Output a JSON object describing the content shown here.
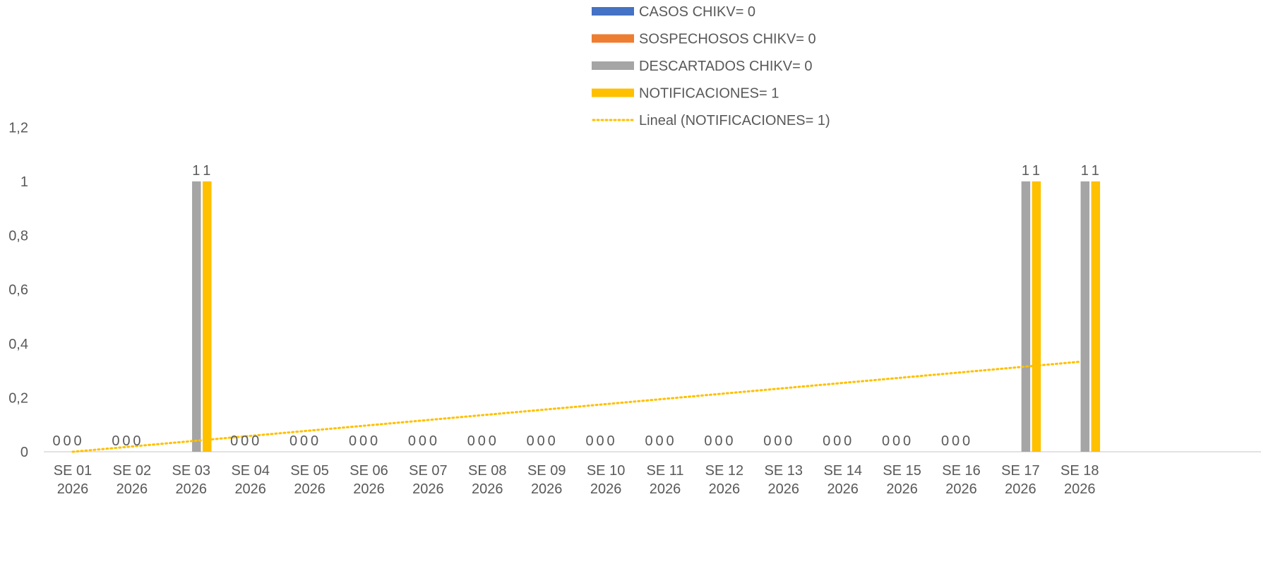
{
  "chart_data": {
    "type": "bar",
    "title": "",
    "xlabel": "",
    "ylabel": "",
    "ylim": [
      0,
      1.2
    ],
    "yticks": [
      "0",
      "0,2",
      "0,4",
      "0,6",
      "0,8",
      "1",
      "1,2"
    ],
    "grid": false,
    "legend_position": "top-right",
    "categories": [
      [
        "SE 01",
        "2026"
      ],
      [
        "SE 02",
        "2026"
      ],
      [
        "SE 03",
        "2026"
      ],
      [
        "SE 04",
        "2026"
      ],
      [
        "SE 05",
        "2026"
      ],
      [
        "SE 06",
        "2026"
      ],
      [
        "SE 07",
        "2026"
      ],
      [
        "SE 08",
        "2026"
      ],
      [
        "SE 09",
        "2026"
      ],
      [
        "SE 10",
        "2026"
      ],
      [
        "SE 11",
        "2026"
      ],
      [
        "SE 12",
        "2026"
      ],
      [
        "SE 13",
        "2026"
      ],
      [
        "SE 14",
        "2026"
      ],
      [
        "SE 15",
        "2026"
      ],
      [
        "SE 16",
        "2026"
      ],
      [
        "SE 17",
        "2026"
      ],
      [
        "SE 18",
        "2026"
      ]
    ],
    "series": [
      {
        "name": "CASOS CHIKV= 0",
        "color": "#4472C4",
        "values": [
          0,
          0,
          0,
          0,
          0,
          0,
          0,
          0,
          0,
          0,
          0,
          0,
          0,
          0,
          0,
          0,
          0,
          0
        ],
        "labels": [
          "0",
          "0",
          "",
          "0",
          "0",
          "0",
          "0",
          "0",
          "0",
          "0",
          "0",
          "0",
          "0",
          "0",
          "0",
          "0",
          "",
          ""
        ]
      },
      {
        "name": "SOSPECHOSOS CHIKV= 0",
        "color": "#ED7D31",
        "values": [
          0,
          0,
          0,
          0,
          0,
          0,
          0,
          0,
          0,
          0,
          0,
          0,
          0,
          0,
          0,
          0,
          0,
          0
        ],
        "labels": [
          "0",
          "0",
          "",
          "0",
          "0",
          "0",
          "0",
          "0",
          "0",
          "0",
          "0",
          "0",
          "0",
          "0",
          "0",
          "0",
          "",
          ""
        ]
      },
      {
        "name": "DESCARTADOS CHIKV= 0",
        "color": "#A5A5A5",
        "values": [
          0,
          0,
          1,
          0,
          0,
          0,
          0,
          0,
          0,
          0,
          0,
          0,
          0,
          0,
          0,
          0,
          1,
          1
        ],
        "labels": [
          "0",
          "0",
          "1",
          "0",
          "0",
          "0",
          "0",
          "0",
          "0",
          "0",
          "0",
          "0",
          "0",
          "0",
          "0",
          "0",
          "1",
          "1"
        ]
      },
      {
        "name": "NOTIFICACIONES= 1",
        "color": "#FFC000",
        "values": [
          0,
          0,
          1,
          0,
          0,
          0,
          0,
          0,
          0,
          0,
          0,
          0,
          0,
          0,
          0,
          0,
          1,
          1
        ],
        "labels": [
          "",
          "",
          "1",
          "",
          "",
          "",
          "",
          "",
          "",
          "",
          "",
          "",
          "",
          "",
          "",
          "",
          "1",
          "1"
        ]
      }
    ],
    "extra_zero_labels": [
      "0",
      "0",
      "0"
    ],
    "trendline": {
      "name": "Lineal (NOTIFICACIONES= 1)",
      "color": "#FFC000",
      "style": "dotted",
      "y_start": 0,
      "y_end": 0.333
    }
  }
}
